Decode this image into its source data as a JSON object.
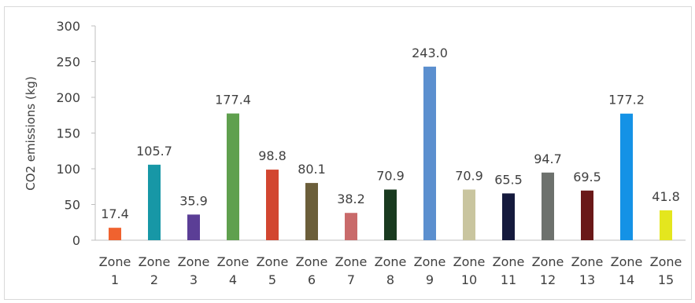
{
  "chart_data": {
    "type": "bar",
    "title": "",
    "xlabel": "",
    "ylabel": "CO2 emissions (kg)",
    "ylim": [
      0,
      300
    ],
    "yticks": [
      0,
      50,
      100,
      150,
      200,
      250,
      300
    ],
    "grid": false,
    "legend": "none",
    "categories": [
      [
        "Zone",
        "1"
      ],
      [
        "Zone",
        "2"
      ],
      [
        "Zone",
        "3"
      ],
      [
        "Zone",
        "4"
      ],
      [
        "Zone",
        "5"
      ],
      [
        "Zone",
        "6"
      ],
      [
        "Zone",
        "7"
      ],
      [
        "Zone",
        "8"
      ],
      [
        "Zone",
        "9"
      ],
      [
        "Zone",
        "10"
      ],
      [
        "Zone",
        "11"
      ],
      [
        "Zone",
        "12"
      ],
      [
        "Zone",
        "13"
      ],
      [
        "Zone",
        "14"
      ],
      [
        "Zone",
        "15"
      ]
    ],
    "values": [
      17.4,
      105.7,
      35.9,
      177.4,
      98.8,
      80.1,
      38.2,
      70.9,
      243.0,
      70.9,
      65.5,
      94.7,
      69.5,
      177.2,
      41.8
    ],
    "value_labels": [
      "17.4",
      "105.7",
      "35.9",
      "177.4",
      "98.8",
      "80.1",
      "38.2",
      "70.9",
      "243.0",
      "70.9",
      "65.5",
      "94.7",
      "69.5",
      "177.2",
      "41.8"
    ],
    "colors": [
      "#f0622f",
      "#1797a6",
      "#5b3e96",
      "#5fa04e",
      "#d24630",
      "#6b5e3a",
      "#c96a6a",
      "#193a1f",
      "#5b8fcf",
      "#c9c59f",
      "#151a3d",
      "#6d716d",
      "#6a1818",
      "#1492e6",
      "#e4e61e"
    ]
  }
}
